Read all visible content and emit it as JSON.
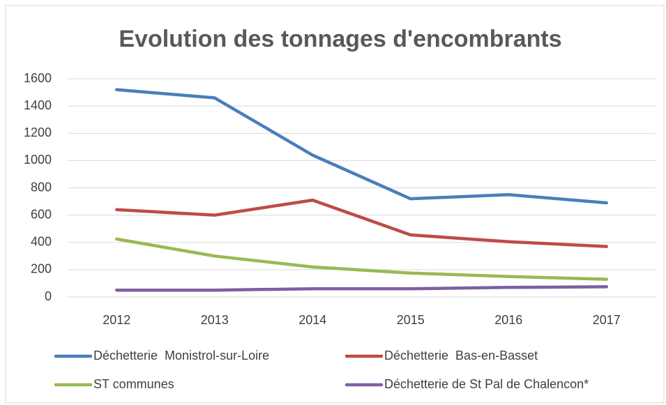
{
  "chart_data": {
    "type": "line",
    "title": "Evolution des tonnages d'encombrants",
    "categories": [
      "2012",
      "2013",
      "2014",
      "2015",
      "2016",
      "2017"
    ],
    "series": [
      {
        "name": "Déchetterie  Monistrol-sur-Loire",
        "color": "#4a7ebb",
        "values": [
          1520,
          1460,
          1040,
          720,
          750,
          690
        ]
      },
      {
        "name": "Déchetterie  Bas-en-Basset",
        "color": "#be4b48",
        "values": [
          640,
          600,
          710,
          455,
          405,
          370
        ]
      },
      {
        "name": "ST communes",
        "color": "#98b954",
        "values": [
          425,
          300,
          220,
          175,
          150,
          130
        ]
      },
      {
        "name": "Déchetterie de St Pal de Chalencon*",
        "color": "#7d60a0",
        "values": [
          50,
          50,
          60,
          60,
          70,
          75
        ]
      }
    ],
    "ylim": [
      0,
      1600
    ],
    "yticks": [
      0,
      200,
      400,
      600,
      800,
      1000,
      1200,
      1400,
      1600
    ],
    "grid": true,
    "legend": "bottom"
  }
}
